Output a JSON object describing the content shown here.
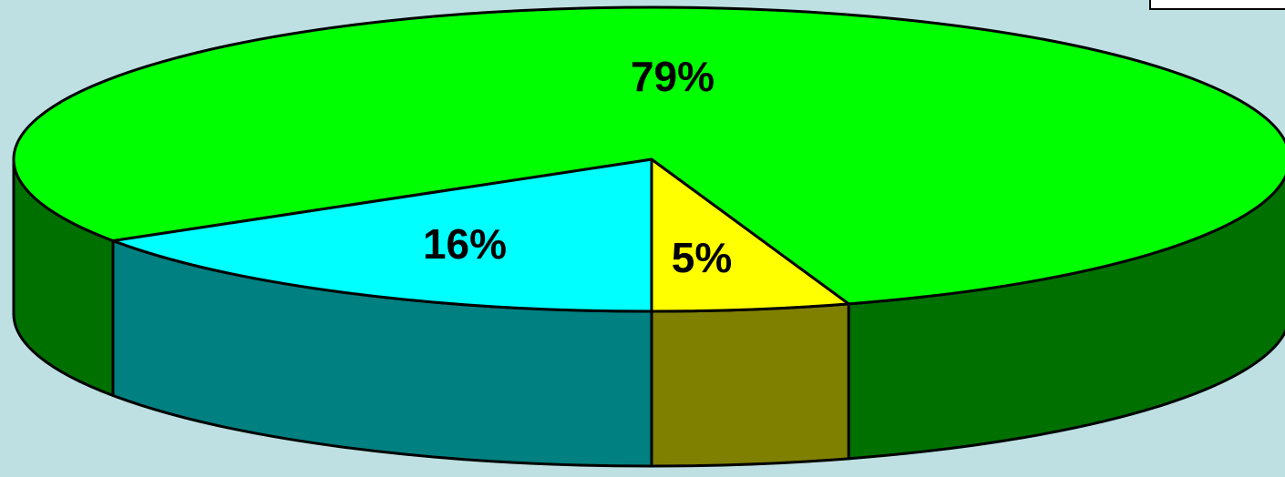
{
  "chart_data": {
    "type": "pie3d",
    "values": [
      5,
      16,
      79
    ],
    "value_labels": [
      "5%",
      "16%",
      "79%"
    ],
    "colors": [
      "#ffff00",
      "#00ffff",
      "#00ff00"
    ],
    "side_colors": [
      "#808000",
      "#008080",
      "#007000"
    ]
  }
}
